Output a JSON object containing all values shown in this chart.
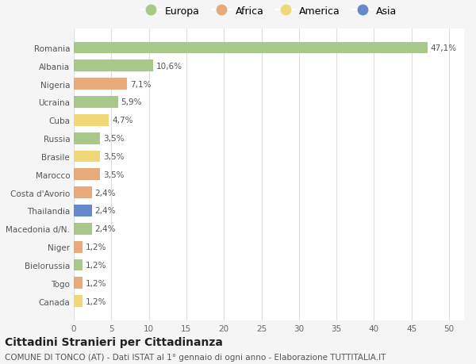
{
  "countries": [
    "Romania",
    "Albania",
    "Nigeria",
    "Ucraina",
    "Cuba",
    "Russia",
    "Brasile",
    "Marocco",
    "Costa d'Avorio",
    "Thailandia",
    "Macedonia d/N.",
    "Niger",
    "Bielorussia",
    "Togo",
    "Canada"
  ],
  "values": [
    47.1,
    10.6,
    7.1,
    5.9,
    4.7,
    3.5,
    3.5,
    3.5,
    2.4,
    2.4,
    2.4,
    1.2,
    1.2,
    1.2,
    1.2
  ],
  "labels": [
    "47,1%",
    "10,6%",
    "7,1%",
    "5,9%",
    "4,7%",
    "3,5%",
    "3,5%",
    "3,5%",
    "2,4%",
    "2,4%",
    "2,4%",
    "1,2%",
    "1,2%",
    "1,2%",
    "1,2%"
  ],
  "continents": [
    "Europa",
    "Europa",
    "Africa",
    "Europa",
    "America",
    "Europa",
    "America",
    "Africa",
    "Africa",
    "Asia",
    "Europa",
    "Africa",
    "Europa",
    "Africa",
    "America"
  ],
  "continent_colors": {
    "Europa": "#a8c88a",
    "Africa": "#e8aa7a",
    "America": "#f0d878",
    "Asia": "#6888cc"
  },
  "legend_order": [
    "Europa",
    "Africa",
    "America",
    "Asia"
  ],
  "title": "Cittadini Stranieri per Cittadinanza",
  "subtitle": "COMUNE DI TONCO (AT) - Dati ISTAT al 1° gennaio di ogni anno - Elaborazione TUTTITALIA.IT",
  "xlabel_vals": [
    0,
    5,
    10,
    15,
    20,
    25,
    30,
    35,
    40,
    45,
    50
  ],
  "xlim": [
    0,
    52
  ],
  "background_color": "#f5f5f5",
  "bar_background": "#ffffff",
  "grid_color": "#dddddd",
  "title_fontsize": 10,
  "subtitle_fontsize": 7.5,
  "label_fontsize": 7.5,
  "tick_fontsize": 7.5,
  "legend_fontsize": 9
}
